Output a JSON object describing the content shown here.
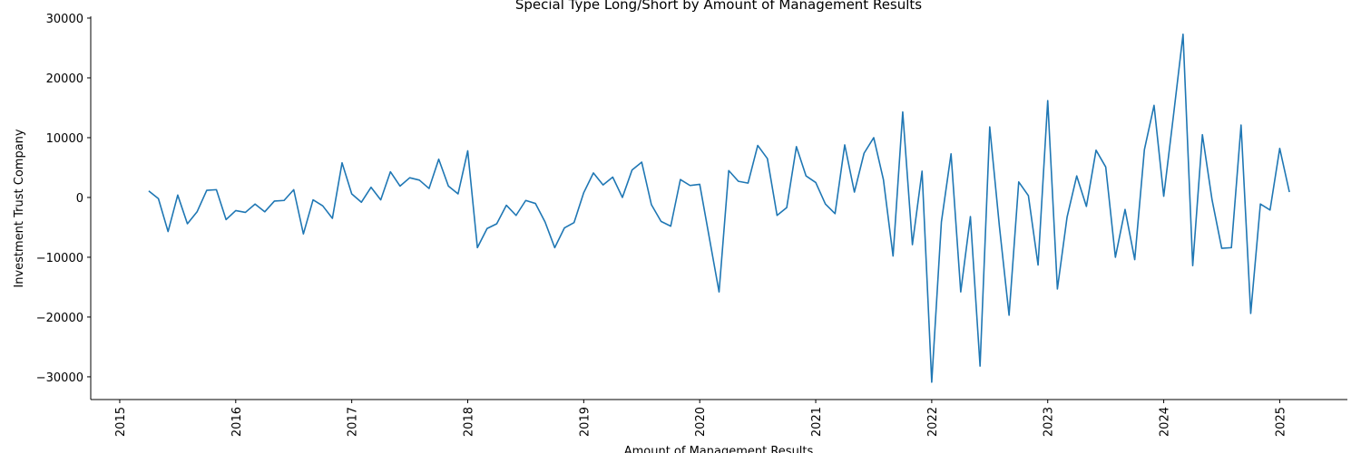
{
  "chart_data": {
    "type": "line",
    "title": "Special Type Long/Short by Amount of Management Results",
    "x_label": "Amount of Management Results",
    "y_label": "Investment Trust Company",
    "x": [
      "2015-04",
      "2015-05",
      "2015-06",
      "2015-07",
      "2015-08",
      "2015-09",
      "2015-10",
      "2015-11",
      "2015-12",
      "2016-01",
      "2016-02",
      "2016-03",
      "2016-04",
      "2016-05",
      "2016-06",
      "2016-07",
      "2016-08",
      "2016-09",
      "2016-10",
      "2016-11",
      "2016-12",
      "2017-01",
      "2017-02",
      "2017-03",
      "2017-04",
      "2017-05",
      "2017-06",
      "2017-07",
      "2017-08",
      "2017-09",
      "2017-10",
      "2017-11",
      "2017-12",
      "2018-01",
      "2018-02",
      "2018-03",
      "2018-04",
      "2018-05",
      "2018-06",
      "2018-07",
      "2018-08",
      "2018-09",
      "2018-10",
      "2018-11",
      "2018-12",
      "2019-01",
      "2019-02",
      "2019-03",
      "2019-04",
      "2019-05",
      "2019-06",
      "2019-07",
      "2019-08",
      "2019-09",
      "2019-10",
      "2019-11",
      "2019-12",
      "2020-01",
      "2020-02",
      "2020-03",
      "2020-04",
      "2020-05",
      "2020-06",
      "2020-07",
      "2020-08",
      "2020-09",
      "2020-10",
      "2020-11",
      "2020-12",
      "2021-01",
      "2021-02",
      "2021-03",
      "2021-04",
      "2021-05",
      "2021-06",
      "2021-07",
      "2021-08",
      "2021-09",
      "2021-10",
      "2021-11",
      "2021-12",
      "2022-01",
      "2022-02",
      "2022-03",
      "2022-04",
      "2022-05",
      "2022-06",
      "2022-07",
      "2022-08",
      "2022-09",
      "2022-10",
      "2022-11",
      "2022-12",
      "2023-01",
      "2023-02",
      "2023-03",
      "2023-04",
      "2023-05",
      "2023-06",
      "2023-07",
      "2023-08",
      "2023-09",
      "2023-10",
      "2023-11",
      "2023-12",
      "2024-01",
      "2024-02",
      "2024-03",
      "2024-04",
      "2024-05",
      "2024-06",
      "2024-07",
      "2024-08",
      "2024-09",
      "2024-10",
      "2024-11",
      "2024-12",
      "2025-01",
      "2025-02"
    ],
    "series": [
      {
        "name": "Investment Trust Company",
        "color": "#1f77b4",
        "values": [
          1100,
          -200,
          -5700,
          400,
          -4400,
          -2400,
          1200,
          1300,
          -3700,
          -2200,
          -2500,
          -1100,
          -2400,
          -600,
          -500,
          1300,
          -6100,
          -400,
          -1400,
          -3500,
          5800,
          600,
          -800,
          1700,
          -400,
          4300,
          1900,
          3300,
          2900,
          1500,
          6400,
          1900,
          600,
          7800,
          -8400,
          -5200,
          -4400,
          -1300,
          -3000,
          -500,
          -1000,
          -4100,
          -8400,
          -5100,
          -4200,
          800,
          4100,
          2100,
          3400,
          0,
          4600,
          5900,
          -1200,
          -4000,
          -4800,
          3000,
          2000,
          2200,
          -6800,
          -15800,
          4500,
          2700,
          2400,
          8700,
          6500,
          -3000,
          -1700,
          8500,
          3600,
          2500,
          -1100,
          -2700,
          8800,
          900,
          7400,
          10000,
          3000,
          -9800,
          14300,
          -7900,
          4400,
          -30900,
          -4100,
          7300,
          -15800,
          -3200,
          -28200,
          11800,
          -4800,
          -19700,
          2600,
          300,
          -11300,
          16200,
          -15300,
          -3300,
          3600,
          -1500,
          7900,
          5100,
          -10000,
          -2000,
          -10400,
          8000,
          15400,
          200,
          13600,
          27300,
          -11400,
          10500,
          -400,
          -8500,
          -8400,
          12100,
          -19400,
          -1100,
          -2100,
          8200,
          900
        ]
      }
    ],
    "xlim": [
      "2014-10",
      "2025-08"
    ],
    "xticks": [
      "2015",
      "2016",
      "2017",
      "2018",
      "2019",
      "2020",
      "2021",
      "2022",
      "2023",
      "2024",
      "2025"
    ],
    "ylim": [
      -33800,
      30300
    ],
    "yticks": [
      {
        "value": -30000,
        "label": "−30000"
      },
      {
        "value": -20000,
        "label": "−20000"
      },
      {
        "value": -10000,
        "label": "−10000"
      },
      0,
      10000,
      20000,
      30000
    ],
    "grid": false
  }
}
